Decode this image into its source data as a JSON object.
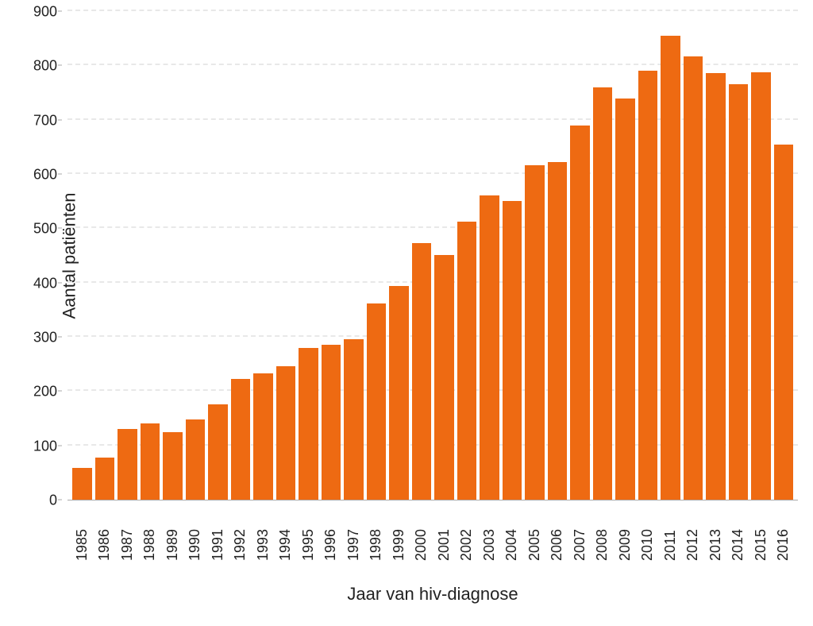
{
  "chart": {
    "type": "bar",
    "xlabel": "Jaar van hiv-diagnose",
    "ylabel": "Aantal patiënten",
    "label_fontsize": 22,
    "tick_fontsize": 18,
    "background_color": "#ffffff",
    "grid_color": "#e8e8e8",
    "grid_dashed": true,
    "axis_line_color": "#aaaaaa",
    "tick_label_color": "#222222",
    "bar_color": "#ee6a12",
    "bar_width": 0.82,
    "ylim": [
      0,
      900
    ],
    "ytick_step": 100,
    "yticks": [
      0,
      100,
      200,
      300,
      400,
      500,
      600,
      700,
      800,
      900
    ],
    "categories": [
      "1985",
      "1986",
      "1987",
      "1988",
      "1989",
      "1990",
      "1991",
      "1992",
      "1993",
      "1994",
      "1995",
      "1996",
      "1997",
      "1998",
      "1999",
      "2000",
      "2001",
      "2002",
      "2003",
      "2004",
      "2005",
      "2006",
      "2007",
      "2008",
      "2009",
      "2010",
      "2011",
      "2012",
      "2013",
      "2014",
      "2015",
      "2016"
    ],
    "values": [
      58,
      78,
      130,
      140,
      125,
      148,
      175,
      222,
      232,
      246,
      280,
      285,
      296,
      361,
      393,
      472,
      451,
      512,
      561,
      550,
      616,
      622,
      690,
      760,
      739,
      790,
      854,
      817,
      786,
      765,
      788,
      654
    ],
    "xtick_rotation": 90
  }
}
